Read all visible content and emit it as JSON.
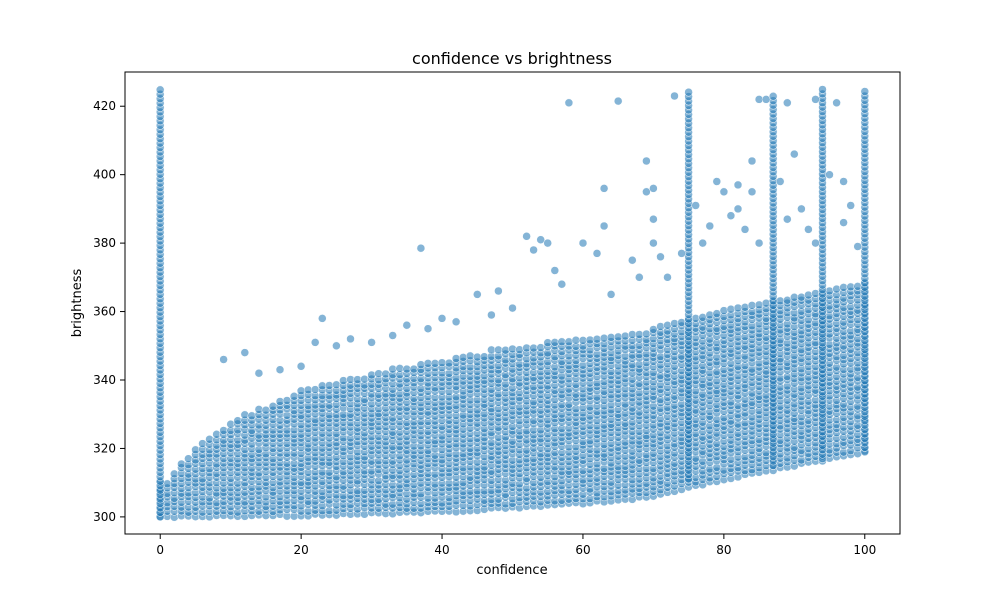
{
  "chart_data": {
    "type": "scatter",
    "title": "confidence vs brightness",
    "xlabel": "confidence",
    "ylabel": "brightness",
    "xlim": [
      -5,
      105
    ],
    "ylim": [
      295,
      430
    ],
    "x_ticks": [
      0,
      20,
      40,
      60,
      80,
      100
    ],
    "y_ticks": [
      300,
      320,
      340,
      360,
      380,
      400,
      420
    ],
    "grid": false,
    "legend": "none",
    "marker_color": "#1f77b4",
    "marker_alpha": 0.55,
    "columns": [
      {
        "x": 0,
        "y_min": 300,
        "y_max": 425
      },
      {
        "x": 75,
        "y_min": 311,
        "y_max": 425
      },
      {
        "x": 87,
        "y_min": 315,
        "y_max": 423
      },
      {
        "x": 94,
        "y_min": 317,
        "y_max": 425
      },
      {
        "x": 100,
        "y_min": 319,
        "y_max": 425
      }
    ],
    "band_lower": [
      [
        0,
        300
      ],
      [
        20,
        300.5
      ],
      [
        40,
        301.5
      ],
      [
        60,
        304
      ],
      [
        70,
        306
      ],
      [
        80,
        311
      ],
      [
        90,
        315
      ],
      [
        100,
        319
      ]
    ],
    "band_upper": [
      [
        1,
        311
      ],
      [
        5,
        320
      ],
      [
        10,
        328
      ],
      [
        20,
        337
      ],
      [
        30,
        342
      ],
      [
        40,
        346
      ],
      [
        50,
        350
      ],
      [
        60,
        352
      ],
      [
        70,
        355
      ],
      [
        80,
        360
      ],
      [
        90,
        364
      ],
      [
        100,
        368
      ]
    ],
    "outliers": [
      [
        9,
        346
      ],
      [
        12,
        348
      ],
      [
        14,
        342
      ],
      [
        17,
        343
      ],
      [
        20,
        344
      ],
      [
        22,
        351
      ],
      [
        23,
        358
      ],
      [
        25,
        350
      ],
      [
        27,
        352
      ],
      [
        30,
        351
      ],
      [
        33,
        353
      ],
      [
        35,
        356
      ],
      [
        37,
        378.5
      ],
      [
        38,
        355
      ],
      [
        40,
        358
      ],
      [
        42,
        357
      ],
      [
        45,
        365
      ],
      [
        47,
        359
      ],
      [
        48,
        366
      ],
      [
        50,
        361
      ],
      [
        52,
        382
      ],
      [
        53,
        378
      ],
      [
        54,
        381
      ],
      [
        55,
        380
      ],
      [
        56,
        372
      ],
      [
        57,
        368
      ],
      [
        58,
        421
      ],
      [
        60,
        380
      ],
      [
        62,
        377
      ],
      [
        63,
        396
      ],
      [
        63,
        385
      ],
      [
        64,
        365
      ],
      [
        65,
        421.5
      ],
      [
        67,
        375
      ],
      [
        68,
        370
      ],
      [
        69,
        404
      ],
      [
        69,
        395
      ],
      [
        70,
        396
      ],
      [
        70,
        387
      ],
      [
        70,
        380
      ],
      [
        71,
        376
      ],
      [
        72,
        370
      ],
      [
        73,
        423
      ],
      [
        74,
        377
      ],
      [
        76,
        391
      ],
      [
        77,
        380
      ],
      [
        78,
        385
      ],
      [
        79,
        398
      ],
      [
        80,
        395
      ],
      [
        81,
        388
      ],
      [
        82,
        397
      ],
      [
        82,
        390
      ],
      [
        83,
        384
      ],
      [
        84,
        404
      ],
      [
        84,
        395
      ],
      [
        85,
        422
      ],
      [
        86,
        422
      ],
      [
        85,
        380
      ],
      [
        88,
        398
      ],
      [
        89,
        421
      ],
      [
        89,
        387
      ],
      [
        90,
        406
      ],
      [
        91,
        390
      ],
      [
        92,
        384
      ],
      [
        93,
        380
      ],
      [
        93,
        422
      ],
      [
        95,
        400
      ],
      [
        96,
        421
      ],
      [
        97,
        398
      ],
      [
        97,
        386
      ],
      [
        98,
        391
      ],
      [
        99,
        379
      ]
    ]
  }
}
